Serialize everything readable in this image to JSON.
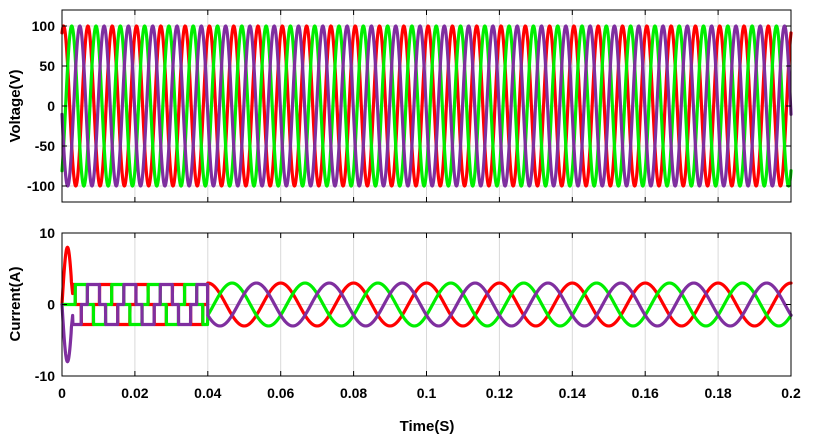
{
  "chart_data": [
    {
      "type": "line",
      "title": "",
      "xlabel": "",
      "ylabel": "Voltage(V)",
      "xlim": [
        0,
        0.2
      ],
      "ylim": [
        -120,
        120
      ],
      "x_ticks": [
        0,
        0.02,
        0.04,
        0.06,
        0.08,
        0.1,
        0.12,
        0.14,
        0.16,
        0.18,
        0.2
      ],
      "y_ticks": [
        -100,
        -50,
        0,
        50,
        100
      ],
      "y_tick_labels": [
        "-100",
        "-50",
        "0",
        "50",
        "100"
      ],
      "x_tick_labels_shown": false,
      "grid": true,
      "legend": "none",
      "waveform": "three-phase sine",
      "amplitude": 100,
      "frequency_hz": 150,
      "series": [
        {
          "color": "#ff0000",
          "phase_deg": 66
        },
        {
          "color": "#00ee00",
          "phase_deg": -54
        },
        {
          "color": "#7f2f9f",
          "phase_deg": 186
        }
      ]
    },
    {
      "type": "line",
      "title": "",
      "xlabel": "Time(S)",
      "ylabel": "Current(A)",
      "xlim": [
        0,
        0.2
      ],
      "ylim": [
        -10,
        10
      ],
      "x_ticks": [
        0,
        0.02,
        0.04,
        0.06,
        0.08,
        0.1,
        0.12,
        0.14,
        0.16,
        0.18,
        0.2
      ],
      "x_tick_labels": [
        "0",
        "0.02",
        "0.04",
        "0.06",
        "0.08",
        "0.1",
        "0.12",
        "0.14",
        "0.16",
        "0.18",
        "0.2"
      ],
      "y_ticks": [
        -10,
        0,
        10
      ],
      "y_tick_labels": [
        "-10",
        "0",
        "10"
      ],
      "grid": true,
      "legend": "none",
      "startup_spike": {
        "peak": 8,
        "end_time": 0.003
      },
      "stepped_segment": {
        "start": 0.002,
        "end": 0.04,
        "level": 2.8,
        "period": 0.01
      },
      "sine_segment": {
        "start": 0.04,
        "end": 0.2,
        "amplitude": 3,
        "frequency_hz": 50
      },
      "series": [
        {
          "color": "#ff0000",
          "phase_deg": 90
        },
        {
          "color": "#00ee00",
          "phase_deg": -30
        },
        {
          "color": "#7f2f9f",
          "phase_deg": 210
        }
      ]
    }
  ]
}
